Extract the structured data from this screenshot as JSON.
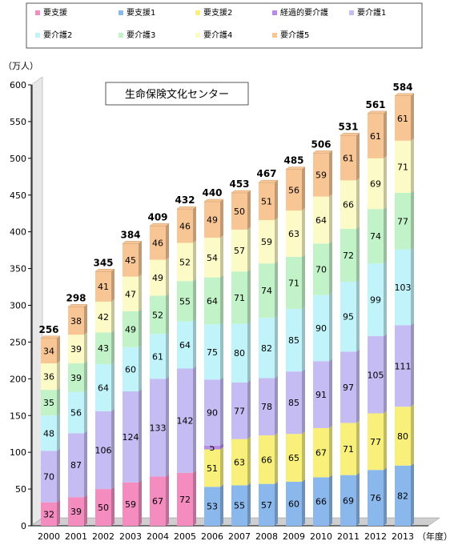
{
  "chart_data": {
    "type": "bar",
    "stacked": true,
    "title": "",
    "source_label": "生命保険文化センター",
    "ylabel": "（万人）",
    "xlabel": "（年度）",
    "ylim": [
      0,
      600
    ],
    "y_ticks": [
      0,
      50,
      100,
      150,
      200,
      250,
      300,
      350,
      400,
      450,
      500,
      550,
      600
    ],
    "grid": false,
    "legend_position": "top",
    "categories": [
      "2000",
      "2001",
      "2002",
      "2003",
      "2004",
      "2005",
      "2006",
      "2007",
      "2008",
      "2009",
      "2010",
      "2011",
      "2012",
      "2013"
    ],
    "series": [
      {
        "name": "要支援",
        "color": "#f48cc0",
        "values": [
          32,
          39,
          50,
          59,
          67,
          72,
          null,
          null,
          null,
          null,
          null,
          null,
          null,
          null
        ]
      },
      {
        "name": "要支援1",
        "color": "#8ab8ec",
        "values": [
          null,
          null,
          null,
          null,
          null,
          null,
          53,
          55,
          57,
          60,
          66,
          69,
          76,
          82
        ]
      },
      {
        "name": "要支援2",
        "color": "#f8f07a",
        "values": [
          null,
          null,
          null,
          null,
          null,
          null,
          51,
          63,
          66,
          65,
          67,
          71,
          77,
          80
        ]
      },
      {
        "name": "経過的要介護",
        "color": "#b68ce8",
        "values": [
          null,
          null,
          null,
          null,
          null,
          null,
          5,
          null,
          null,
          null,
          null,
          null,
          null,
          null
        ]
      },
      {
        "name": "要介護1",
        "color": "#c4bcf2",
        "values": [
          70,
          87,
          106,
          124,
          133,
          142,
          90,
          77,
          78,
          85,
          91,
          97,
          105,
          111
        ]
      },
      {
        "name": "要介護2",
        "color": "#c0f4fa",
        "values": [
          48,
          56,
          64,
          60,
          61,
          64,
          75,
          80,
          82,
          85,
          90,
          95,
          99,
          103
        ]
      },
      {
        "name": "要介護3",
        "color": "#c2f2c8",
        "values": [
          35,
          39,
          43,
          49,
          52,
          55,
          64,
          71,
          74,
          71,
          70,
          72,
          74,
          77
        ]
      },
      {
        "name": "要介護4",
        "color": "#fcfac6",
        "values": [
          36,
          39,
          42,
          47,
          49,
          52,
          54,
          57,
          59,
          63,
          64,
          66,
          69,
          71
        ]
      },
      {
        "name": "要介護5",
        "color": "#f8c694",
        "values": [
          34,
          38,
          41,
          45,
          46,
          46,
          49,
          50,
          51,
          56,
          59,
          61,
          61,
          61
        ]
      }
    ],
    "totals": [
      256,
      298,
      345,
      384,
      409,
      432,
      440,
      453,
      467,
      485,
      506,
      531,
      561,
      584
    ]
  }
}
